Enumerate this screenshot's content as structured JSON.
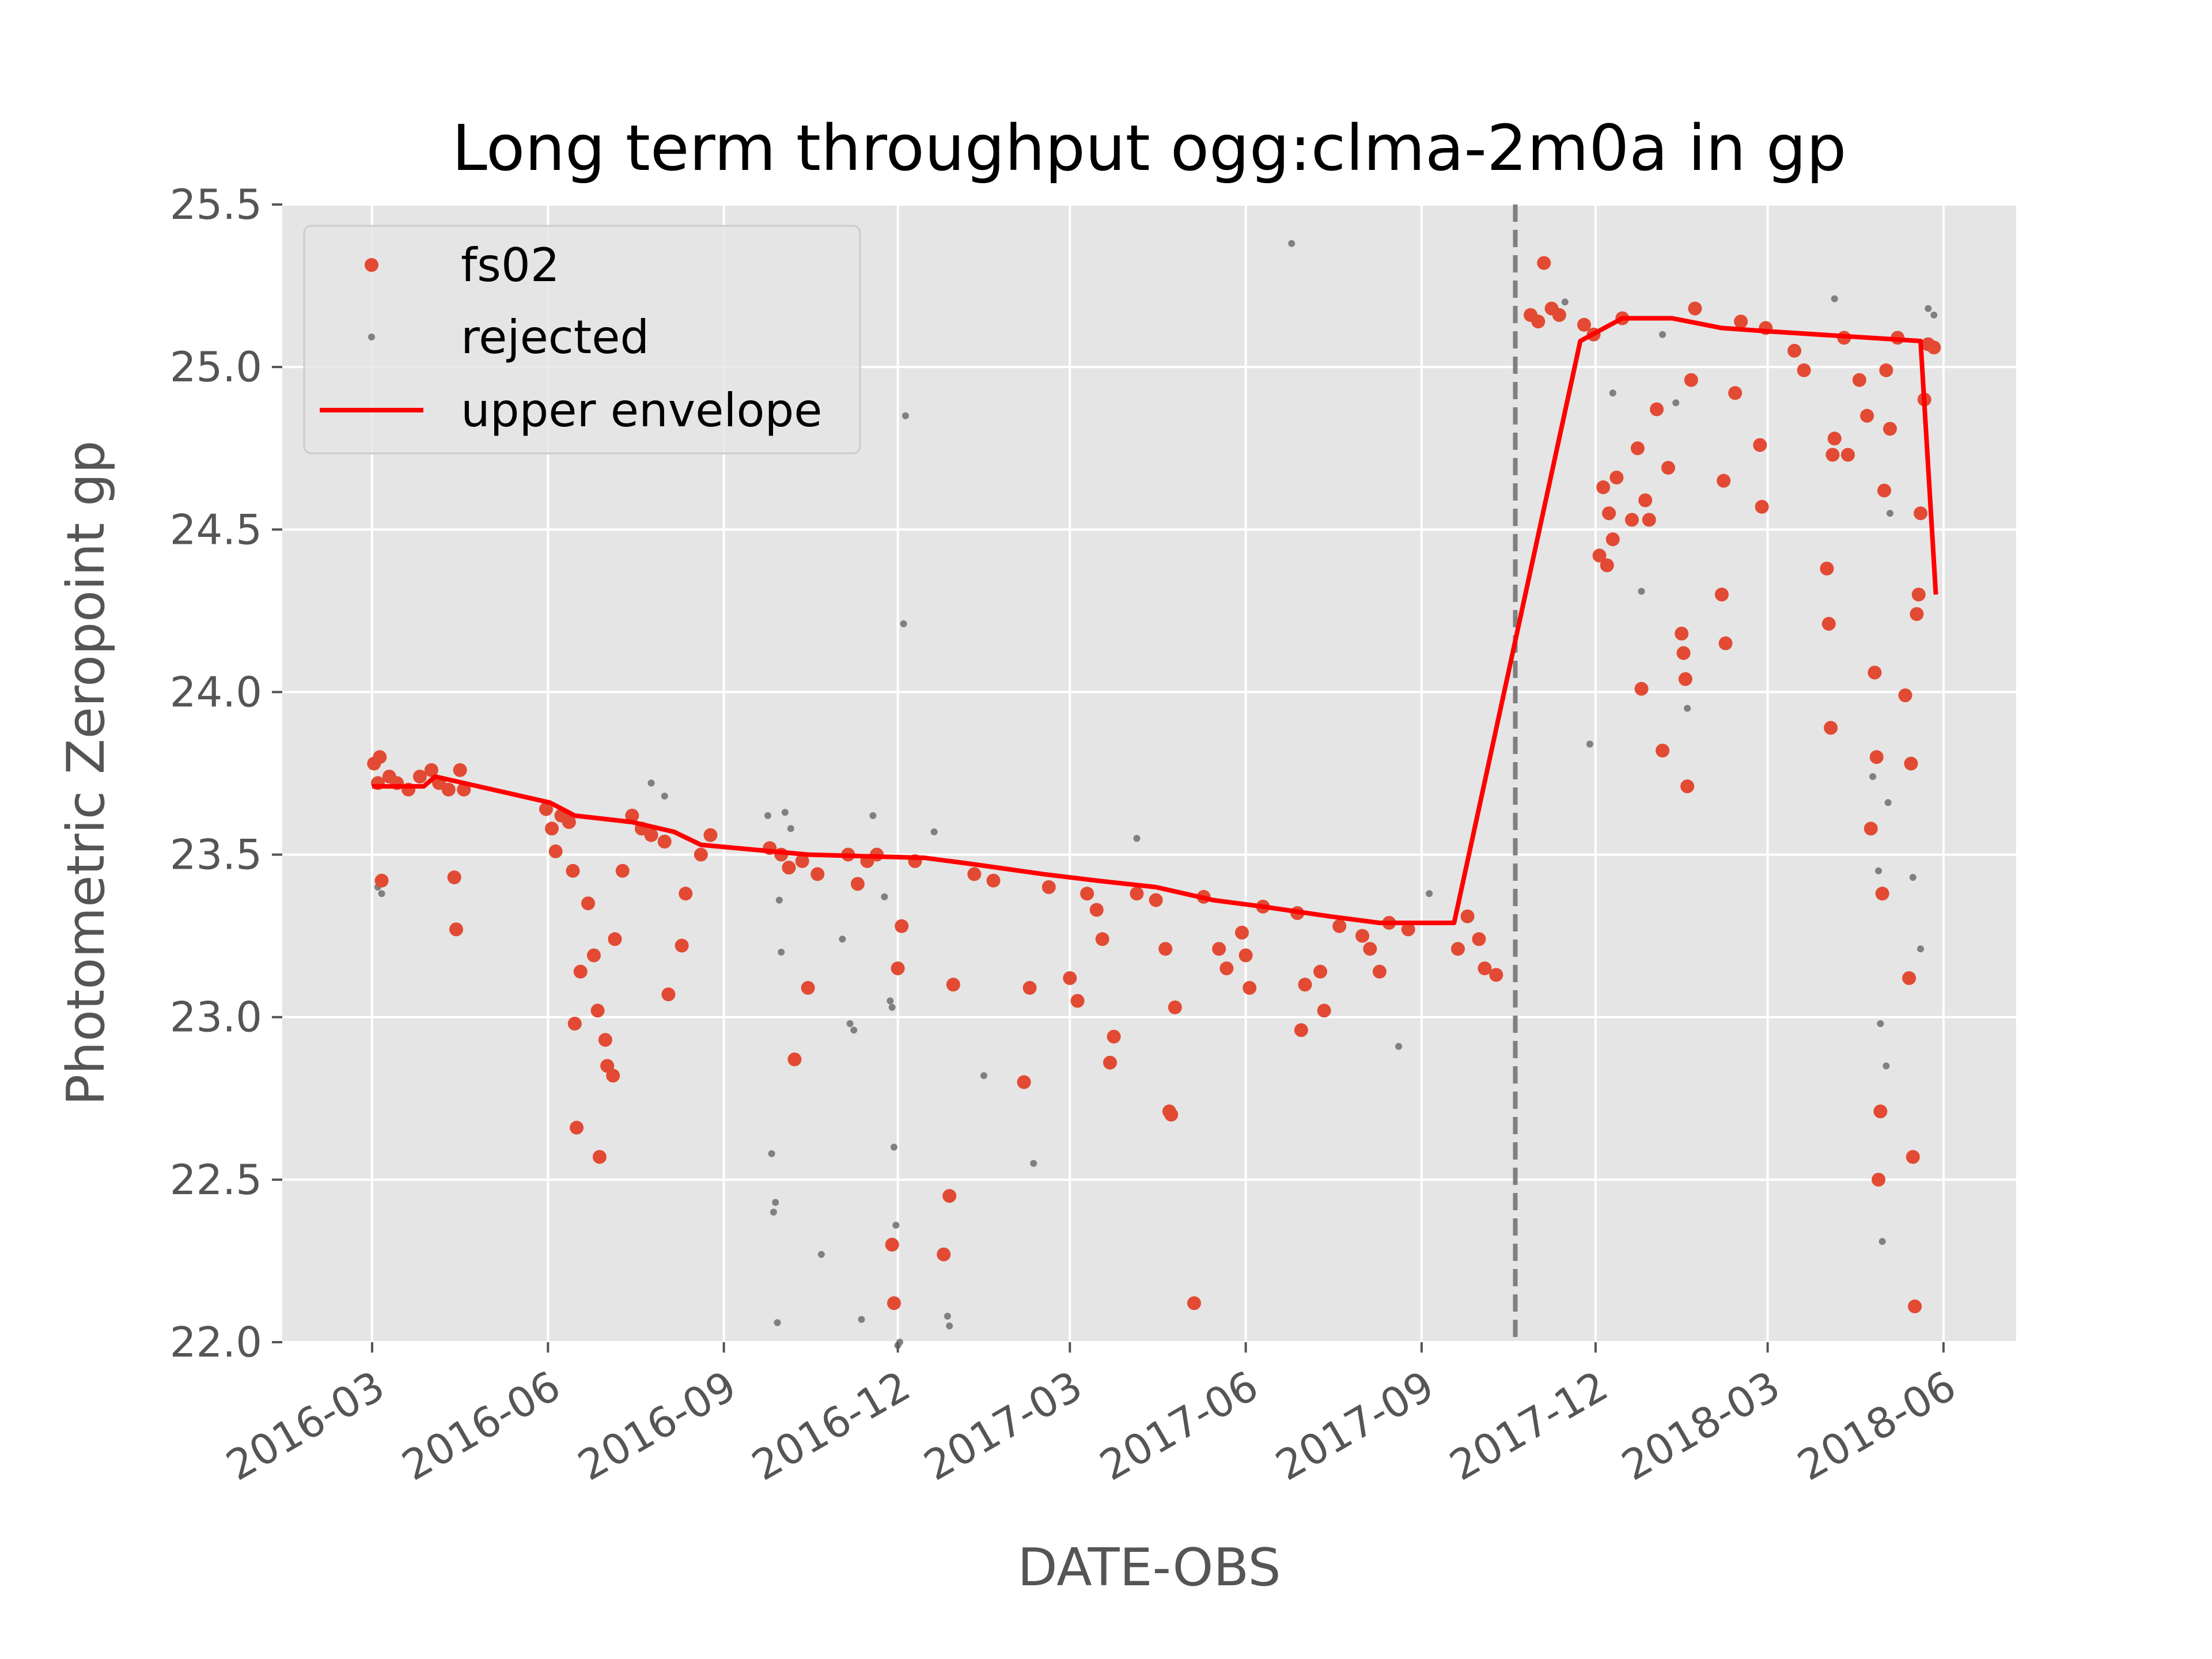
{
  "chart_data": {
    "type": "scatter",
    "title": "Long term throughput  ogg:clma-2m0a in gp",
    "xlabel": "DATE-OBS",
    "ylabel": "Photometric Zeropoint gp",
    "xlim": [
      "2016-01-14",
      "2018-07-09"
    ],
    "ylim": [
      22.0,
      25.5
    ],
    "x_ticks": [
      "2016-03",
      "2016-06",
      "2016-09",
      "2016-12",
      "2017-03",
      "2017-06",
      "2017-09",
      "2017-12",
      "2018-03",
      "2018-06"
    ],
    "y_ticks": [
      "22.0",
      "22.5",
      "23.0",
      "23.5",
      "24.0",
      "24.5",
      "25.0",
      "25.5"
    ],
    "grid": true,
    "legend_position": "upper-left",
    "colors": {
      "fs02": "#E24A33",
      "rejected": "#808080",
      "envelope": "#FF0000",
      "vline": "#808080",
      "plot_bg": "#E5E5E5",
      "grid": "#FFFFFF"
    },
    "vline_date": "2017-10-20",
    "series": [
      {
        "name": "fs02",
        "marker": "dot",
        "points": [
          [
            "2016-03-02",
            23.78
          ],
          [
            "2016-03-04",
            23.72
          ],
          [
            "2016-03-05",
            23.8
          ],
          [
            "2016-03-06",
            23.42
          ],
          [
            "2016-03-10",
            23.74
          ],
          [
            "2016-03-14",
            23.72
          ],
          [
            "2016-03-20",
            23.7
          ],
          [
            "2016-03-26",
            23.74
          ],
          [
            "2016-04-01",
            23.76
          ],
          [
            "2016-04-05",
            23.72
          ],
          [
            "2016-04-10",
            23.7
          ],
          [
            "2016-04-13",
            23.43
          ],
          [
            "2016-04-14",
            23.27
          ],
          [
            "2016-04-16",
            23.76
          ],
          [
            "2016-04-18",
            23.7
          ],
          [
            "2016-05-31",
            23.64
          ],
          [
            "2016-06-03",
            23.58
          ],
          [
            "2016-06-05",
            23.51
          ],
          [
            "2016-06-08",
            23.62
          ],
          [
            "2016-06-12",
            23.6
          ],
          [
            "2016-06-14",
            23.45
          ],
          [
            "2016-06-15",
            22.98
          ],
          [
            "2016-06-16",
            22.66
          ],
          [
            "2016-06-18",
            23.14
          ],
          [
            "2016-06-22",
            23.35
          ],
          [
            "2016-06-25",
            23.19
          ],
          [
            "2016-06-27",
            23.02
          ],
          [
            "2016-06-28",
            22.57
          ],
          [
            "2016-07-01",
            22.93
          ],
          [
            "2016-07-02",
            22.85
          ],
          [
            "2016-07-05",
            22.82
          ],
          [
            "2016-07-06",
            23.24
          ],
          [
            "2016-07-10",
            23.45
          ],
          [
            "2016-07-15",
            23.62
          ],
          [
            "2016-07-20",
            23.58
          ],
          [
            "2016-07-25",
            23.56
          ],
          [
            "2016-08-01",
            23.54
          ],
          [
            "2016-08-03",
            23.07
          ],
          [
            "2016-08-10",
            23.22
          ],
          [
            "2016-08-12",
            23.38
          ],
          [
            "2016-08-20",
            23.5
          ],
          [
            "2016-08-25",
            23.56
          ],
          [
            "2016-09-25",
            23.52
          ],
          [
            "2016-10-01",
            23.5
          ],
          [
            "2016-10-05",
            23.46
          ],
          [
            "2016-10-08",
            22.87
          ],
          [
            "2016-10-12",
            23.48
          ],
          [
            "2016-10-15",
            23.09
          ],
          [
            "2016-10-20",
            23.44
          ],
          [
            "2016-11-05",
            23.5
          ],
          [
            "2016-11-10",
            23.41
          ],
          [
            "2016-11-15",
            23.48
          ],
          [
            "2016-11-20",
            23.5
          ],
          [
            "2016-11-28",
            22.3
          ],
          [
            "2016-11-29",
            22.12
          ],
          [
            "2016-12-01",
            23.15
          ],
          [
            "2016-12-03",
            23.28
          ],
          [
            "2016-12-10",
            23.48
          ],
          [
            "2016-12-25",
            22.27
          ],
          [
            "2016-12-28",
            22.45
          ],
          [
            "2016-12-30",
            23.1
          ],
          [
            "2017-01-10",
            23.44
          ],
          [
            "2017-01-20",
            23.42
          ],
          [
            "2017-02-05",
            22.8
          ],
          [
            "2017-02-08",
            23.09
          ],
          [
            "2017-02-18",
            23.4
          ],
          [
            "2017-03-01",
            23.12
          ],
          [
            "2017-03-05",
            23.05
          ],
          [
            "2017-03-10",
            23.38
          ],
          [
            "2017-03-15",
            23.33
          ],
          [
            "2017-03-18",
            23.24
          ],
          [
            "2017-03-22",
            22.86
          ],
          [
            "2017-03-24",
            22.94
          ],
          [
            "2017-04-05",
            23.38
          ],
          [
            "2017-04-15",
            23.36
          ],
          [
            "2017-04-20",
            23.21
          ],
          [
            "2017-04-22",
            22.71
          ],
          [
            "2017-04-23",
            22.7
          ],
          [
            "2017-04-25",
            23.03
          ],
          [
            "2017-05-05",
            22.12
          ],
          [
            "2017-05-10",
            23.37
          ],
          [
            "2017-05-18",
            23.21
          ],
          [
            "2017-05-22",
            23.15
          ],
          [
            "2017-05-30",
            23.26
          ],
          [
            "2017-06-01",
            23.19
          ],
          [
            "2017-06-03",
            23.09
          ],
          [
            "2017-06-10",
            23.34
          ],
          [
            "2017-06-28",
            23.32
          ],
          [
            "2017-06-30",
            22.96
          ],
          [
            "2017-07-02",
            23.1
          ],
          [
            "2017-07-10",
            23.14
          ],
          [
            "2017-07-12",
            23.02
          ],
          [
            "2017-07-20",
            23.28
          ],
          [
            "2017-08-01",
            23.25
          ],
          [
            "2017-08-05",
            23.21
          ],
          [
            "2017-08-10",
            23.14
          ],
          [
            "2017-08-15",
            23.29
          ],
          [
            "2017-08-25",
            23.27
          ],
          [
            "2017-09-20",
            23.21
          ],
          [
            "2017-09-25",
            23.31
          ],
          [
            "2017-10-01",
            23.24
          ],
          [
            "2017-10-04",
            23.15
          ],
          [
            "2017-10-10",
            23.13
          ],
          [
            "2017-10-28",
            25.16
          ],
          [
            "2017-11-01",
            25.14
          ],
          [
            "2017-11-04",
            25.32
          ],
          [
            "2017-11-08",
            25.18
          ],
          [
            "2017-11-12",
            25.16
          ],
          [
            "2017-11-25",
            25.13
          ],
          [
            "2017-11-30",
            25.1
          ],
          [
            "2017-12-03",
            24.42
          ],
          [
            "2017-12-05",
            24.63
          ],
          [
            "2017-12-07",
            24.39
          ],
          [
            "2017-12-08",
            24.55
          ],
          [
            "2017-12-10",
            24.47
          ],
          [
            "2017-12-12",
            24.66
          ],
          [
            "2017-12-15",
            25.15
          ],
          [
            "2017-12-20",
            24.53
          ],
          [
            "2017-12-23",
            24.75
          ],
          [
            "2017-12-25",
            24.01
          ],
          [
            "2017-12-27",
            24.59
          ],
          [
            "2017-12-29",
            24.53
          ],
          [
            "2018-01-02",
            24.87
          ],
          [
            "2018-01-05",
            23.82
          ],
          [
            "2018-01-08",
            24.69
          ],
          [
            "2018-01-15",
            24.18
          ],
          [
            "2018-01-16",
            24.12
          ],
          [
            "2018-01-17",
            24.04
          ],
          [
            "2018-01-18",
            23.71
          ],
          [
            "2018-01-20",
            24.96
          ],
          [
            "2018-01-22",
            25.18
          ],
          [
            "2018-02-05",
            24.3
          ],
          [
            "2018-02-06",
            24.65
          ],
          [
            "2018-02-07",
            24.15
          ],
          [
            "2018-02-12",
            24.92
          ],
          [
            "2018-02-15",
            25.14
          ],
          [
            "2018-02-25",
            24.76
          ],
          [
            "2018-02-26",
            24.57
          ],
          [
            "2018-02-28",
            25.12
          ],
          [
            "2018-03-15",
            25.05
          ],
          [
            "2018-03-20",
            24.99
          ],
          [
            "2018-04-01",
            24.38
          ],
          [
            "2018-04-02",
            24.21
          ],
          [
            "2018-04-03",
            23.89
          ],
          [
            "2018-04-04",
            24.73
          ],
          [
            "2018-04-05",
            24.78
          ],
          [
            "2018-04-10",
            25.09
          ],
          [
            "2018-04-12",
            24.73
          ],
          [
            "2018-04-18",
            24.96
          ],
          [
            "2018-04-22",
            24.85
          ],
          [
            "2018-04-24",
            23.58
          ],
          [
            "2018-04-26",
            24.06
          ],
          [
            "2018-04-27",
            23.8
          ],
          [
            "2018-04-28",
            22.5
          ],
          [
            "2018-04-29",
            22.71
          ],
          [
            "2018-04-30",
            23.38
          ],
          [
            "2018-05-01",
            24.62
          ],
          [
            "2018-05-02",
            24.99
          ],
          [
            "2018-05-04",
            24.81
          ],
          [
            "2018-05-08",
            25.09
          ],
          [
            "2018-05-12",
            23.99
          ],
          [
            "2018-05-14",
            23.12
          ],
          [
            "2018-05-15",
            23.78
          ],
          [
            "2018-05-16",
            22.57
          ],
          [
            "2018-05-17",
            22.11
          ],
          [
            "2018-05-18",
            24.24
          ],
          [
            "2018-05-19",
            24.3
          ],
          [
            "2018-05-20",
            24.55
          ],
          [
            "2018-05-22",
            24.9
          ],
          [
            "2018-05-24",
            25.07
          ],
          [
            "2018-05-27",
            25.06
          ]
        ]
      },
      {
        "name": "rejected",
        "marker": "small-dot",
        "points": [
          [
            "2016-03-04",
            23.4
          ],
          [
            "2016-03-06",
            23.38
          ],
          [
            "2016-07-25",
            23.72
          ],
          [
            "2016-08-01",
            23.68
          ],
          [
            "2016-09-24",
            23.62
          ],
          [
            "2016-09-26",
            22.58
          ],
          [
            "2016-09-27",
            22.4
          ],
          [
            "2016-09-28",
            22.43
          ],
          [
            "2016-09-29",
            22.06
          ],
          [
            "2016-09-30",
            23.36
          ],
          [
            "2016-10-01",
            23.2
          ],
          [
            "2016-10-03",
            23.63
          ],
          [
            "2016-10-06",
            23.58
          ],
          [
            "2016-10-22",
            22.27
          ],
          [
            "2016-11-02",
            23.24
          ],
          [
            "2016-11-06",
            22.98
          ],
          [
            "2016-11-08",
            22.96
          ],
          [
            "2016-11-12",
            22.07
          ],
          [
            "2016-11-18",
            23.62
          ],
          [
            "2016-11-24",
            23.37
          ],
          [
            "2016-11-27",
            23.05
          ],
          [
            "2016-11-28",
            23.03
          ],
          [
            "2016-11-29",
            22.6
          ],
          [
            "2016-11-30",
            22.36
          ],
          [
            "2016-12-01",
            21.99
          ],
          [
            "2016-12-02",
            22.0
          ],
          [
            "2016-12-03",
            23.27
          ],
          [
            "2016-12-04",
            24.21
          ],
          [
            "2016-12-05",
            24.85
          ],
          [
            "2016-12-20",
            23.57
          ],
          [
            "2016-12-28",
            22.05
          ],
          [
            "2016-12-27",
            22.08
          ],
          [
            "2017-01-15",
            22.82
          ],
          [
            "2017-02-10",
            22.55
          ],
          [
            "2017-04-05",
            23.55
          ],
          [
            "2017-06-25",
            25.38
          ],
          [
            "2017-08-20",
            22.91
          ],
          [
            "2017-09-05",
            23.38
          ],
          [
            "2017-11-15",
            25.2
          ],
          [
            "2017-11-28",
            23.84
          ],
          [
            "2017-12-10",
            24.92
          ],
          [
            "2017-12-25",
            24.31
          ],
          [
            "2018-01-05",
            25.1
          ],
          [
            "2018-01-12",
            24.89
          ],
          [
            "2018-01-18",
            23.95
          ],
          [
            "2018-04-05",
            25.21
          ],
          [
            "2018-04-25",
            23.74
          ],
          [
            "2018-04-27",
            24.06
          ],
          [
            "2018-04-28",
            23.45
          ],
          [
            "2018-04-29",
            22.98
          ],
          [
            "2018-04-30",
            22.31
          ],
          [
            "2018-05-02",
            22.85
          ],
          [
            "2018-05-03",
            23.66
          ],
          [
            "2018-05-04",
            24.55
          ],
          [
            "2018-05-16",
            23.43
          ],
          [
            "2018-05-20",
            23.21
          ],
          [
            "2018-05-24",
            25.18
          ],
          [
            "2018-05-27",
            25.16
          ]
        ]
      },
      {
        "name": "upper envelope",
        "marker": "line",
        "points": [
          [
            "2016-03-01",
            23.71
          ],
          [
            "2016-03-28",
            23.71
          ],
          [
            "2016-04-03",
            23.74
          ],
          [
            "2016-06-02",
            23.66
          ],
          [
            "2016-06-15",
            23.62
          ],
          [
            "2016-07-15",
            23.6
          ],
          [
            "2016-08-06",
            23.57
          ],
          [
            "2016-08-20",
            23.53
          ],
          [
            "2016-10-15",
            23.5
          ],
          [
            "2016-12-15",
            23.49
          ],
          [
            "2017-01-10",
            23.47
          ],
          [
            "2017-02-15",
            23.44
          ],
          [
            "2017-03-15",
            23.42
          ],
          [
            "2017-04-15",
            23.4
          ],
          [
            "2017-05-15",
            23.36
          ],
          [
            "2017-06-10",
            23.34
          ],
          [
            "2017-07-15",
            23.31
          ],
          [
            "2017-08-10",
            23.29
          ],
          [
            "2017-09-18",
            23.29
          ],
          [
            "2017-11-23",
            25.08
          ],
          [
            "2017-12-15",
            25.15
          ],
          [
            "2018-01-10",
            25.15
          ],
          [
            "2018-02-05",
            25.12
          ],
          [
            "2018-03-01",
            25.11
          ],
          [
            "2018-05-20",
            25.08
          ],
          [
            "2018-05-28",
            24.3
          ]
        ]
      }
    ]
  }
}
